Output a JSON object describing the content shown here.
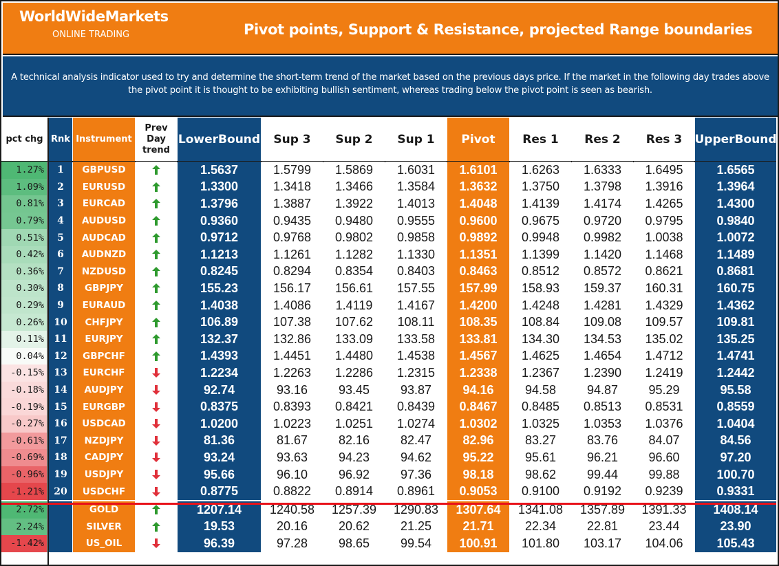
{
  "header": {
    "brand": "WorldWideMarkets",
    "brand_sub": "ONLINE TRADING",
    "title": "Pivot points, Support & Resistance, projected Range boundaries"
  },
  "description": "A technical analysis indicator used to try and determine the short-term trend of the market based on the previous days price. If the market in the following day trades above the pivot point it is thought to be exhibiting bullish sentiment, whereas trading below the pivot point is seen as bearish.",
  "columns": {
    "pct": "pct chg",
    "rnk": "Rnk",
    "instrument": "Instrument",
    "trend": "Prev Day trend",
    "lower": "LowerBound",
    "sup3": "Sup 3",
    "sup2": "Sup 2",
    "sup1": "Sup 1",
    "pivot": "Pivot",
    "res1": "Res 1",
    "res2": "Res 2",
    "res3": "Res 3",
    "upper": "UpperBound"
  },
  "colors": {
    "orange": "#f07d12",
    "navy": "#114a7e",
    "up_arrow": "#2e9a2e",
    "down_arrow": "#e0303a",
    "separator": "#e8121a"
  },
  "rows": [
    {
      "pct": "1.27%",
      "rnk": "1",
      "instrument": "GBPUSD",
      "trend": "up",
      "lower": "1.5637",
      "sup3": "1.5799",
      "sup2": "1.5869",
      "sup1": "1.6031",
      "pivot": "1.6101",
      "res1": "1.6263",
      "res2": "1.6333",
      "res3": "1.6495",
      "upper": "1.6565",
      "pct_color": "#4fb874"
    },
    {
      "pct": "1.09%",
      "rnk": "2",
      "instrument": "EURUSD",
      "trend": "up",
      "lower": "1.3300",
      "sup3": "1.3418",
      "sup2": "1.3466",
      "sup1": "1.3584",
      "pivot": "1.3632",
      "res1": "1.3750",
      "res2": "1.3798",
      "res3": "1.3916",
      "upper": "1.3964",
      "pct_color": "#5dbd7f"
    },
    {
      "pct": "0.81%",
      "rnk": "3",
      "instrument": "EURCAD",
      "trend": "up",
      "lower": "1.3796",
      "sup3": "1.3887",
      "sup2": "1.3922",
      "sup1": "1.4013",
      "pivot": "1.4048",
      "res1": "1.4139",
      "res2": "1.4174",
      "res3": "1.4265",
      "upper": "1.4300",
      "pct_color": "#74c690"
    },
    {
      "pct": "0.79%",
      "rnk": "4",
      "instrument": "AUDUSD",
      "trend": "up",
      "lower": "0.9360",
      "sup3": "0.9435",
      "sup2": "0.9480",
      "sup1": "0.9555",
      "pivot": "0.9600",
      "res1": "0.9675",
      "res2": "0.9720",
      "res3": "0.9795",
      "upper": "0.9840",
      "pct_color": "#76c792"
    },
    {
      "pct": "0.51%",
      "rnk": "5",
      "instrument": "AUDCAD",
      "trend": "up",
      "lower": "0.9712",
      "sup3": "0.9768",
      "sup2": "0.9802",
      "sup1": "0.9858",
      "pivot": "0.9892",
      "res1": "0.9948",
      "res2": "0.9982",
      "res3": "1.0038",
      "upper": "1.0072",
      "pct_color": "#a0d8b3"
    },
    {
      "pct": "0.42%",
      "rnk": "6",
      "instrument": "AUDNZD",
      "trend": "up",
      "lower": "1.1213",
      "sup3": "1.1261",
      "sup2": "1.1282",
      "sup1": "1.1330",
      "pivot": "1.1351",
      "res1": "1.1399",
      "res2": "1.1420",
      "res3": "1.1468",
      "upper": "1.1489",
      "pct_color": "#a9dcba"
    },
    {
      "pct": "0.36%",
      "rnk": "7",
      "instrument": "NZDUSD",
      "trend": "up",
      "lower": "0.8245",
      "sup3": "0.8294",
      "sup2": "0.8354",
      "sup1": "0.8403",
      "pivot": "0.8463",
      "res1": "0.8512",
      "res2": "0.8572",
      "res3": "0.8621",
      "upper": "0.8681",
      "pct_color": "#b4e0c2"
    },
    {
      "pct": "0.30%",
      "rnk": "8",
      "instrument": "GBPJPY",
      "trend": "up",
      "lower": "155.23",
      "sup3": "156.17",
      "sup2": "156.61",
      "sup1": "157.55",
      "pivot": "157.99",
      "res1": "158.93",
      "res2": "159.37",
      "res3": "160.31",
      "upper": "160.75",
      "pct_color": "#bde4ca"
    },
    {
      "pct": "0.29%",
      "rnk": "9",
      "instrument": "EURAUD",
      "trend": "up",
      "lower": "1.4038",
      "sup3": "1.4086",
      "sup2": "1.4119",
      "sup1": "1.4167",
      "pivot": "1.4200",
      "res1": "1.4248",
      "res2": "1.4281",
      "res3": "1.4329",
      "upper": "1.4362",
      "pct_color": "#c0e5cc"
    },
    {
      "pct": "0.26%",
      "rnk": "10",
      "instrument": "CHFJPY",
      "trend": "up",
      "lower": "106.89",
      "sup3": "107.38",
      "sup2": "107.62",
      "sup1": "108.11",
      "pivot": "108.35",
      "res1": "108.84",
      "res2": "109.08",
      "res3": "109.57",
      "upper": "109.81",
      "pct_color": "#c6e8d1"
    },
    {
      "pct": "0.11%",
      "rnk": "11",
      "instrument": "EURJPY",
      "trend": "up",
      "lower": "132.37",
      "sup3": "132.86",
      "sup2": "133.09",
      "sup1": "133.58",
      "pivot": "133.81",
      "res1": "134.30",
      "res2": "134.53",
      "res3": "135.02",
      "upper": "135.25",
      "pct_color": "#e3f3e8"
    },
    {
      "pct": "0.04%",
      "rnk": "12",
      "instrument": "GBPCHF",
      "trend": "up",
      "lower": "1.4393",
      "sup3": "1.4451",
      "sup2": "1.4480",
      "sup1": "1.4538",
      "pivot": "1.4567",
      "res1": "1.4625",
      "res2": "1.4654",
      "res3": "1.4712",
      "upper": "1.4741",
      "pct_color": "#f8fbf8"
    },
    {
      "pct": "-0.15%",
      "rnk": "13",
      "instrument": "EURCHF",
      "trend": "down",
      "lower": "1.2234",
      "sup3": "1.2263",
      "sup2": "1.2286",
      "sup1": "1.2315",
      "pivot": "1.2338",
      "res1": "1.2367",
      "res2": "1.2390",
      "res3": "1.2419",
      "upper": "1.2442",
      "pct_color": "#fbe3e3"
    },
    {
      "pct": "-0.18%",
      "rnk": "14",
      "instrument": "AUDJPY",
      "trend": "down",
      "lower": "92.74",
      "sup3": "93.16",
      "sup2": "93.45",
      "sup1": "93.87",
      "pivot": "94.16",
      "res1": "94.58",
      "res2": "94.87",
      "res3": "95.29",
      "upper": "95.58",
      "pct_color": "#fadada"
    },
    {
      "pct": "-0.19%",
      "rnk": "15",
      "instrument": "EURGBP",
      "trend": "down",
      "lower": "0.8375",
      "sup3": "0.8393",
      "sup2": "0.8421",
      "sup1": "0.8439",
      "pivot": "0.8467",
      "res1": "0.8485",
      "res2": "0.8513",
      "res3": "0.8531",
      "upper": "0.8559",
      "pct_color": "#fad7d7"
    },
    {
      "pct": "-0.27%",
      "rnk": "16",
      "instrument": "USDCAD",
      "trend": "down",
      "lower": "1.0200",
      "sup3": "1.0223",
      "sup2": "1.0251",
      "sup1": "1.0274",
      "pivot": "1.0302",
      "res1": "1.0325",
      "res2": "1.0353",
      "res3": "1.0376",
      "upper": "1.0404",
      "pct_color": "#f8c9c9"
    },
    {
      "pct": "-0.61%",
      "rnk": "17",
      "instrument": "NZDJPY",
      "trend": "down",
      "lower": "81.36",
      "sup3": "81.67",
      "sup2": "82.16",
      "sup1": "82.47",
      "pivot": "82.96",
      "res1": "83.27",
      "res2": "83.76",
      "res3": "84.07",
      "upper": "84.56",
      "pct_color": "#f29a9c"
    },
    {
      "pct": "-0.69%",
      "rnk": "18",
      "instrument": "CADJPY",
      "trend": "down",
      "lower": "93.24",
      "sup3": "93.63",
      "sup2": "94.23",
      "sup1": "94.62",
      "pivot": "95.22",
      "res1": "95.61",
      "res2": "96.21",
      "res3": "96.60",
      "upper": "97.20",
      "pct_color": "#ef8c8f"
    },
    {
      "pct": "-0.96%",
      "rnk": "19",
      "instrument": "USDJPY",
      "trend": "down",
      "lower": "95.66",
      "sup3": "96.10",
      "sup2": "96.92",
      "sup1": "97.36",
      "pivot": "98.18",
      "res1": "98.62",
      "res2": "99.44",
      "res3": "99.88",
      "upper": "100.70",
      "pct_color": "#e96468"
    },
    {
      "pct": "-1.21%",
      "rnk": "20",
      "instrument": "USDCHF",
      "trend": "down",
      "lower": "0.8775",
      "sup3": "0.8822",
      "sup2": "0.8914",
      "sup1": "0.8961",
      "pivot": "0.9053",
      "res1": "0.9100",
      "res2": "0.9192",
      "res3": "0.9239",
      "upper": "0.9331",
      "pct_color": "#e5474c"
    },
    {
      "pct": "2.72%",
      "rnk": "",
      "instrument": "GOLD",
      "trend": "up",
      "lower": "1207.14",
      "sup3": "1240.58",
      "sup2": "1257.39",
      "sup1": "1290.83",
      "pivot": "1307.64",
      "res1": "1341.08",
      "res2": "1357.89",
      "res3": "1391.33",
      "upper": "1408.14",
      "pct_color": "#4fb874"
    },
    {
      "pct": "2.24%",
      "rnk": "",
      "instrument": "SILVER",
      "trend": "up",
      "lower": "19.53",
      "sup3": "20.16",
      "sup2": "20.62",
      "sup1": "21.25",
      "pivot": "21.71",
      "res1": "22.34",
      "res2": "22.81",
      "res3": "23.44",
      "upper": "23.90",
      "pct_color": "#63bf83"
    },
    {
      "pct": "-1.42%",
      "rnk": "",
      "instrument": "US_OIL",
      "trend": "down",
      "lower": "96.39",
      "sup3": "97.28",
      "sup2": "98.65",
      "sup1": "99.54",
      "pivot": "100.91",
      "res1": "101.80",
      "res2": "103.17",
      "res3": "104.06",
      "upper": "105.43",
      "pct_color": "#e5474c"
    }
  ]
}
